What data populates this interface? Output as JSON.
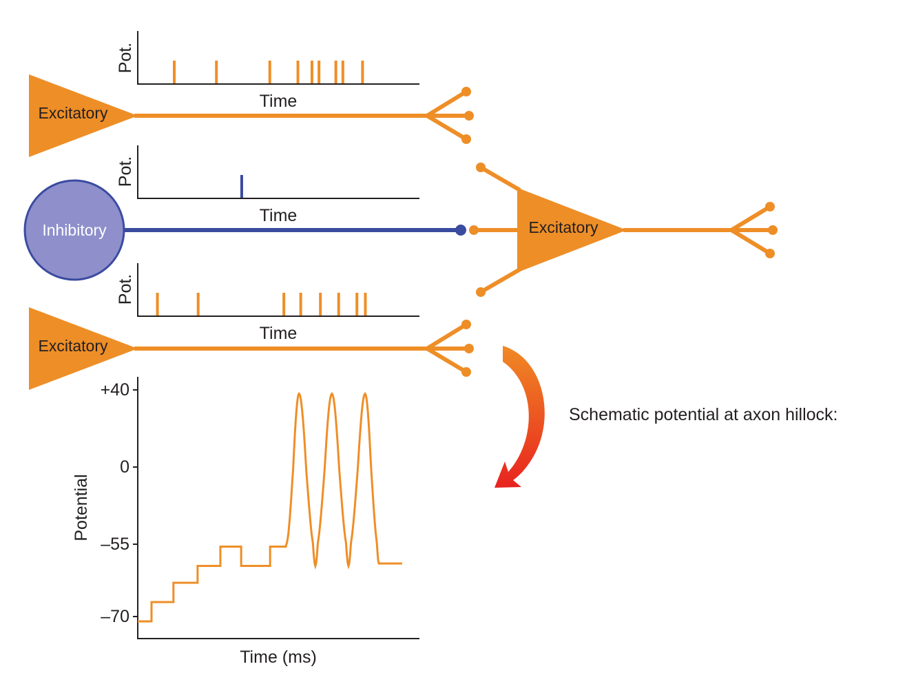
{
  "colors": {
    "excitatory": "#ee8e27",
    "inhibitory_fill": "#8e8fcb",
    "inhibitory_stroke": "#3a4ba0",
    "axis": "#231f20",
    "arrow_start": "#f08a24",
    "arrow_end": "#e8231f"
  },
  "neurons": {
    "top": {
      "label": "Excitatory"
    },
    "middle": {
      "label": "Inhibitory"
    },
    "bottom": {
      "label": "Excitatory"
    },
    "target": {
      "label": "Excitatory"
    }
  },
  "rasters": [
    {
      "ylabel": "Pot.",
      "xlabel": "Time",
      "color": "#ee8e27",
      "spike_times": [
        13,
        28,
        47,
        57,
        62,
        64.5,
        70.5,
        73,
        80
      ]
    },
    {
      "ylabel": "Pot.",
      "xlabel": "Time",
      "color": "#3a4ba0",
      "spike_times": [
        37
      ]
    },
    {
      "ylabel": "Pot.",
      "xlabel": "Time",
      "color": "#ee8e27",
      "spike_times": [
        7,
        21.5,
        52,
        58,
        65,
        71.5,
        78,
        81
      ]
    }
  ],
  "annotation": "Schematic potential at axon hillock:",
  "chart_data": {
    "type": "line",
    "xlabel": "Time (ms)",
    "ylabel": "Potential",
    "yticks": [
      "+40",
      "0",
      "–55",
      "–70"
    ],
    "ytick_values": [
      40,
      0,
      -55,
      -70
    ],
    "steps": [
      {
        "t0": 0,
        "t1": 4.9,
        "v": -71
      },
      {
        "t0": 4.9,
        "t1": 12.7,
        "v": -67
      },
      {
        "t0": 12.7,
        "t1": 21.3,
        "v": -63
      },
      {
        "t0": 21.3,
        "t1": 29.4,
        "v": -59.5
      },
      {
        "t0": 29.4,
        "t1": 36.8,
        "v": -55.5
      },
      {
        "t0": 36.8,
        "t1": 47.1,
        "v": -59.5
      },
      {
        "t0": 47.1,
        "t1": 52.7,
        "v": -55.5
      }
    ],
    "spike_extremes": [
      [
        52.7,
        -55.5
      ],
      [
        57.4,
        38
      ],
      [
        63.2,
        -59.5
      ],
      [
        69.1,
        38
      ],
      [
        75,
        -59.5
      ],
      [
        80.9,
        38
      ],
      [
        85.8,
        -59
      ]
    ],
    "tail": {
      "t_end": 94.1,
      "v": -59
    }
  }
}
